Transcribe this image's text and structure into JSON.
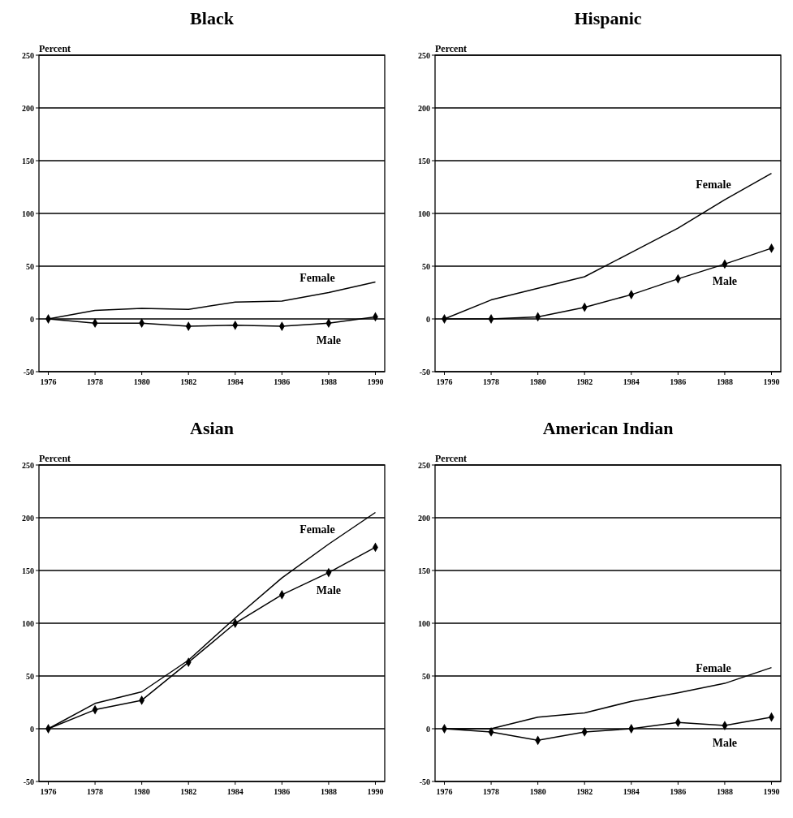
{
  "chart_data": [
    {
      "type": "line",
      "title": "Black",
      "ylabel": "Percent",
      "x": [
        1976,
        1978,
        1980,
        1982,
        1984,
        1986,
        1988,
        1990
      ],
      "xlim": [
        1975.6,
        1990.4
      ],
      "xticks": [
        1976,
        1978,
        1980,
        1982,
        1984,
        1986,
        1988,
        1990
      ],
      "ylim": [
        -50,
        250
      ],
      "yticks": [
        -50,
        0,
        50,
        100,
        150,
        200,
        250
      ],
      "grid": "y",
      "series": [
        {
          "name": "Female",
          "color": "#000000",
          "marker": "none",
          "values": [
            0,
            8,
            10,
            9,
            16,
            17,
            25,
            35
          ]
        },
        {
          "name": "Male",
          "color": "#000000",
          "marker": "diamond",
          "values": [
            0,
            -4,
            -4,
            -7,
            -6,
            -7,
            -4,
            2
          ]
        }
      ]
    },
    {
      "type": "line",
      "title": "Hispanic",
      "ylabel": "Percent",
      "x": [
        1976,
        1978,
        1980,
        1982,
        1984,
        1986,
        1988,
        1990
      ],
      "xlim": [
        1975.6,
        1990.4
      ],
      "xticks": [
        1976,
        1978,
        1980,
        1982,
        1984,
        1986,
        1988,
        1990
      ],
      "ylim": [
        -50,
        250
      ],
      "yticks": [
        -50,
        0,
        50,
        100,
        150,
        200,
        250
      ],
      "grid": "y",
      "series": [
        {
          "name": "Female",
          "color": "#000000",
          "marker": "none",
          "values": [
            0,
            18,
            29,
            40,
            63,
            86,
            113,
            138
          ]
        },
        {
          "name": "Male",
          "color": "#000000",
          "marker": "diamond",
          "values": [
            0,
            0,
            2,
            11,
            23,
            38,
            52,
            67
          ]
        }
      ]
    },
    {
      "type": "line",
      "title": "Asian",
      "ylabel": "Percent",
      "x": [
        1976,
        1978,
        1980,
        1982,
        1984,
        1986,
        1988,
        1990
      ],
      "xlim": [
        1975.6,
        1990.4
      ],
      "xticks": [
        1976,
        1978,
        1980,
        1982,
        1984,
        1986,
        1988,
        1990
      ],
      "ylim": [
        -50,
        250
      ],
      "yticks": [
        -50,
        0,
        50,
        100,
        150,
        200,
        250
      ],
      "grid": "y",
      "series": [
        {
          "name": "Female",
          "color": "#000000",
          "marker": "none",
          "values": [
            0,
            24,
            35,
            65,
            105,
            143,
            175,
            205
          ]
        },
        {
          "name": "Male",
          "color": "#000000",
          "marker": "diamond",
          "values": [
            0,
            18,
            27,
            63,
            100,
            127,
            148,
            172
          ]
        }
      ]
    },
    {
      "type": "line",
      "title": "American Indian",
      "ylabel": "Percent",
      "x": [
        1976,
        1978,
        1980,
        1982,
        1984,
        1986,
        1988,
        1990
      ],
      "xlim": [
        1975.6,
        1990.4
      ],
      "xticks": [
        1976,
        1978,
        1980,
        1982,
        1984,
        1986,
        1988,
        1990
      ],
      "ylim": [
        -50,
        250
      ],
      "yticks": [
        -50,
        0,
        50,
        100,
        150,
        200,
        250
      ],
      "grid": "y",
      "series": [
        {
          "name": "Female",
          "color": "#000000",
          "marker": "none",
          "values": [
            0,
            0,
            11,
            15,
            26,
            34,
            43,
            58
          ]
        },
        {
          "name": "Male",
          "color": "#000000",
          "marker": "diamond",
          "values": [
            0,
            -3,
            -11,
            -3,
            0,
            6,
            3,
            11
          ]
        }
      ]
    }
  ]
}
